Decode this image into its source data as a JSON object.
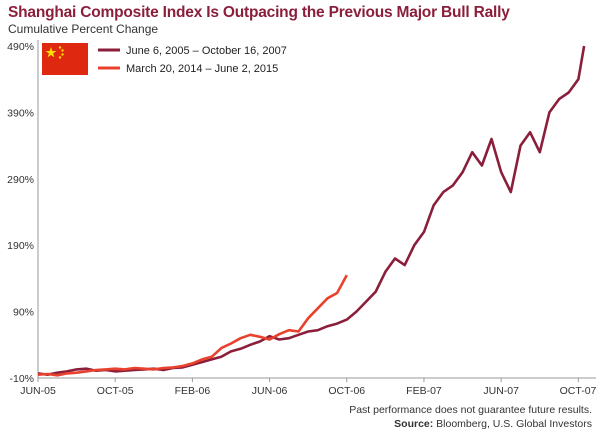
{
  "title": "Shanghai Composite Index Is Outpacing the Previous Major Bull Rally",
  "subtitle": "Cumulative Percent Change",
  "footnote": "Past performance does not guarantee future results.",
  "source_label": "Source:",
  "source_text": "Bloomberg, U.S. Global Investors",
  "flag_icon": "china-flag-icon",
  "colors": {
    "series_2005": "#8b1f3b",
    "series_2014": "#e8412e",
    "axis": "#999999",
    "title": "#8b1f3b"
  },
  "chart_data": {
    "type": "line",
    "title": "Shanghai Composite Index Is Outpacing the Previous Major Bull Rally",
    "subtitle": "Cumulative Percent Change",
    "xlabel": "",
    "ylabel": "",
    "x_ticks": [
      "JUN-05",
      "OCT-05",
      "FEB-06",
      "JUN-06",
      "OCT-06",
      "FEB-07",
      "JUN-07",
      "OCT-07"
    ],
    "y_ticks": [
      "-10%",
      "90%",
      "190%",
      "290%",
      "390%",
      "490%"
    ],
    "ylim": [
      -10,
      490
    ],
    "xlim": [
      0,
      28.5
    ],
    "x_unit": "months since June 2005",
    "grid": false,
    "legend_position": "top-left",
    "series": [
      {
        "name": "June 6, 2005 – October 16, 2007",
        "color": "#8b1f3b",
        "x": [
          0,
          0.5,
          1,
          1.5,
          2,
          2.5,
          3,
          3.5,
          4,
          4.5,
          5,
          5.5,
          6,
          6.5,
          7,
          7.5,
          8,
          8.5,
          9,
          9.5,
          10,
          10.5,
          11,
          11.5,
          12,
          12.5,
          13,
          13.5,
          14,
          14.5,
          15,
          15.5,
          16,
          16.5,
          17,
          17.5,
          18,
          18.5,
          19,
          19.5,
          20,
          20.5,
          21,
          21.5,
          22,
          22.5,
          23,
          23.5,
          24,
          24.5,
          25,
          25.5,
          26,
          26.5,
          27,
          27.5,
          28,
          28.3
        ],
        "values": [
          -3,
          -5,
          -2,
          0,
          3,
          4,
          1,
          2,
          0,
          1,
          2,
          3,
          4,
          2,
          5,
          6,
          10,
          14,
          18,
          22,
          30,
          34,
          40,
          45,
          53,
          48,
          50,
          55,
          60,
          62,
          68,
          72,
          78,
          90,
          105,
          120,
          150,
          170,
          160,
          190,
          210,
          250,
          270,
          280,
          300,
          330,
          310,
          350,
          300,
          270,
          340,
          360,
          330,
          390,
          410,
          420,
          440,
          490
        ]
      },
      {
        "name": "March 20, 2014 – June 2, 2015",
        "color": "#e8412e",
        "x": [
          0,
          0.5,
          1,
          1.5,
          2,
          2.5,
          3,
          3.5,
          4,
          4.5,
          5,
          5.5,
          6,
          6.5,
          7,
          7.5,
          8,
          8.5,
          9,
          9.5,
          10,
          10.5,
          11,
          11.5,
          12,
          12.5,
          13,
          13.5,
          14,
          14.5,
          15,
          15.5,
          16
        ],
        "values": [
          -5,
          -4,
          -6,
          -3,
          -2,
          0,
          2,
          3,
          4,
          3,
          5,
          4,
          3,
          5,
          6,
          8,
          12,
          18,
          22,
          35,
          42,
          50,
          55,
          52,
          48,
          56,
          62,
          60,
          80,
          95,
          110,
          118,
          145
        ]
      }
    ]
  }
}
